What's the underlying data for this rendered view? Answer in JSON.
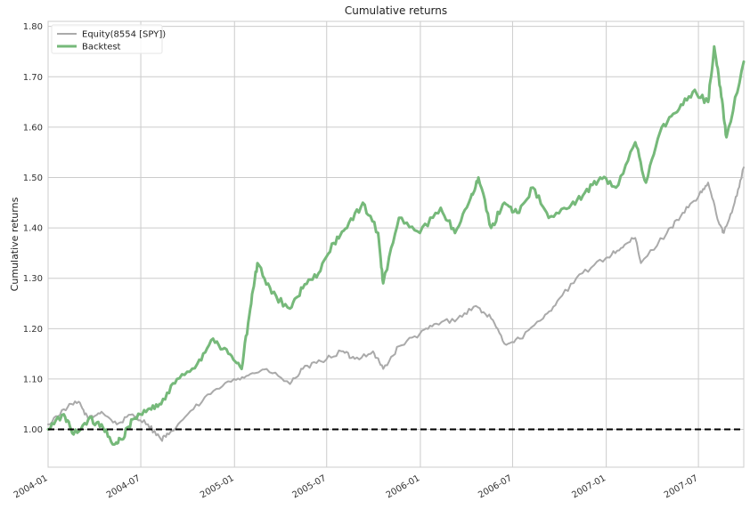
{
  "chart_data": {
    "type": "line",
    "title": "Cumulative returns",
    "xlabel": "",
    "ylabel": "Cumulative returns",
    "xlim": [
      "2004-01-01",
      "2007-09-28"
    ],
    "ylim": [
      0.925,
      1.81
    ],
    "grid": true,
    "legend_position": "top-left",
    "x_ticks": [
      "2004-01",
      "2004-07",
      "2005-01",
      "2005-07",
      "2006-01",
      "2006-07",
      "2007-01",
      "2007-07"
    ],
    "y_ticks": [
      "1.00",
      "1.10",
      "1.20",
      "1.30",
      "1.40",
      "1.50",
      "1.60",
      "1.70",
      "1.80"
    ],
    "reference_line": {
      "y": 1.0,
      "style": "dashed",
      "color": "#000000"
    },
    "series": [
      {
        "name": "Equity(8554 [SPY])",
        "color": "#aaaaaa",
        "x": [
          "2004-01-01",
          "2004-02-01",
          "2004-03-01",
          "2004-03-20",
          "2004-04-15",
          "2004-05-15",
          "2004-06-15",
          "2004-07-15",
          "2004-08-10",
          "2004-08-25",
          "2004-10-01",
          "2004-11-15",
          "2004-12-31",
          "2005-02-01",
          "2005-03-05",
          "2005-04-20",
          "2005-05-15",
          "2005-06-20",
          "2005-07-30",
          "2005-08-25",
          "2005-09-30",
          "2005-10-20",
          "2005-11-20",
          "2005-12-31",
          "2006-02-01",
          "2006-03-15",
          "2006-04-20",
          "2006-05-20",
          "2006-06-15",
          "2006-07-15",
          "2006-08-30",
          "2006-10-01",
          "2006-11-15",
          "2006-12-31",
          "2007-01-30",
          "2007-02-27",
          "2007-03-10",
          "2007-04-30",
          "2007-05-31",
          "2007-06-30",
          "2007-07-20",
          "2007-08-10",
          "2007-08-20",
          "2007-09-10",
          "2007-09-28"
        ],
        "values": [
          1.01,
          1.04,
          1.055,
          1.02,
          1.035,
          1.01,
          1.03,
          1.01,
          0.98,
          0.99,
          1.03,
          1.07,
          1.1,
          1.11,
          1.12,
          1.09,
          1.12,
          1.135,
          1.155,
          1.14,
          1.155,
          1.12,
          1.165,
          1.19,
          1.21,
          1.22,
          1.245,
          1.22,
          1.17,
          1.18,
          1.22,
          1.26,
          1.31,
          1.34,
          1.36,
          1.38,
          1.33,
          1.39,
          1.43,
          1.46,
          1.49,
          1.41,
          1.39,
          1.45,
          1.52
        ]
      },
      {
        "name": "Backtest",
        "color": "#76b97a",
        "x": [
          "2004-01-01",
          "2004-02-01",
          "2004-02-20",
          "2004-03-20",
          "2004-04-15",
          "2004-05-10",
          "2004-05-25",
          "2004-06-15",
          "2004-07-15",
          "2004-08-10",
          "2004-09-10",
          "2004-10-20",
          "2004-11-20",
          "2004-12-20",
          "2005-01-15",
          "2005-02-01",
          "2005-02-15",
          "2005-03-15",
          "2005-04-20",
          "2005-05-15",
          "2005-06-15",
          "2005-07-15",
          "2005-08-10",
          "2005-09-10",
          "2005-10-10",
          "2005-10-20",
          "2005-11-20",
          "2005-12-31",
          "2006-02-10",
          "2006-03-10",
          "2006-04-10",
          "2006-04-25",
          "2006-05-20",
          "2006-06-15",
          "2006-07-10",
          "2006-08-10",
          "2006-09-10",
          "2006-10-20",
          "2006-11-20",
          "2006-12-20",
          "2007-01-20",
          "2007-02-27",
          "2007-03-20",
          "2007-04-20",
          "2007-05-20",
          "2007-06-20",
          "2007-07-20",
          "2007-08-01",
          "2007-08-15",
          "2007-08-25",
          "2007-09-28"
        ],
        "values": [
          1.0,
          1.03,
          0.99,
          1.02,
          1.01,
          0.97,
          0.98,
          1.02,
          1.04,
          1.05,
          1.1,
          1.13,
          1.18,
          1.15,
          1.12,
          1.24,
          1.33,
          1.27,
          1.24,
          1.28,
          1.31,
          1.37,
          1.4,
          1.45,
          1.39,
          1.29,
          1.42,
          1.39,
          1.44,
          1.39,
          1.46,
          1.5,
          1.4,
          1.45,
          1.43,
          1.48,
          1.42,
          1.44,
          1.47,
          1.5,
          1.48,
          1.57,
          1.49,
          1.6,
          1.63,
          1.67,
          1.65,
          1.76,
          1.66,
          1.58,
          1.73
        ]
      }
    ]
  }
}
